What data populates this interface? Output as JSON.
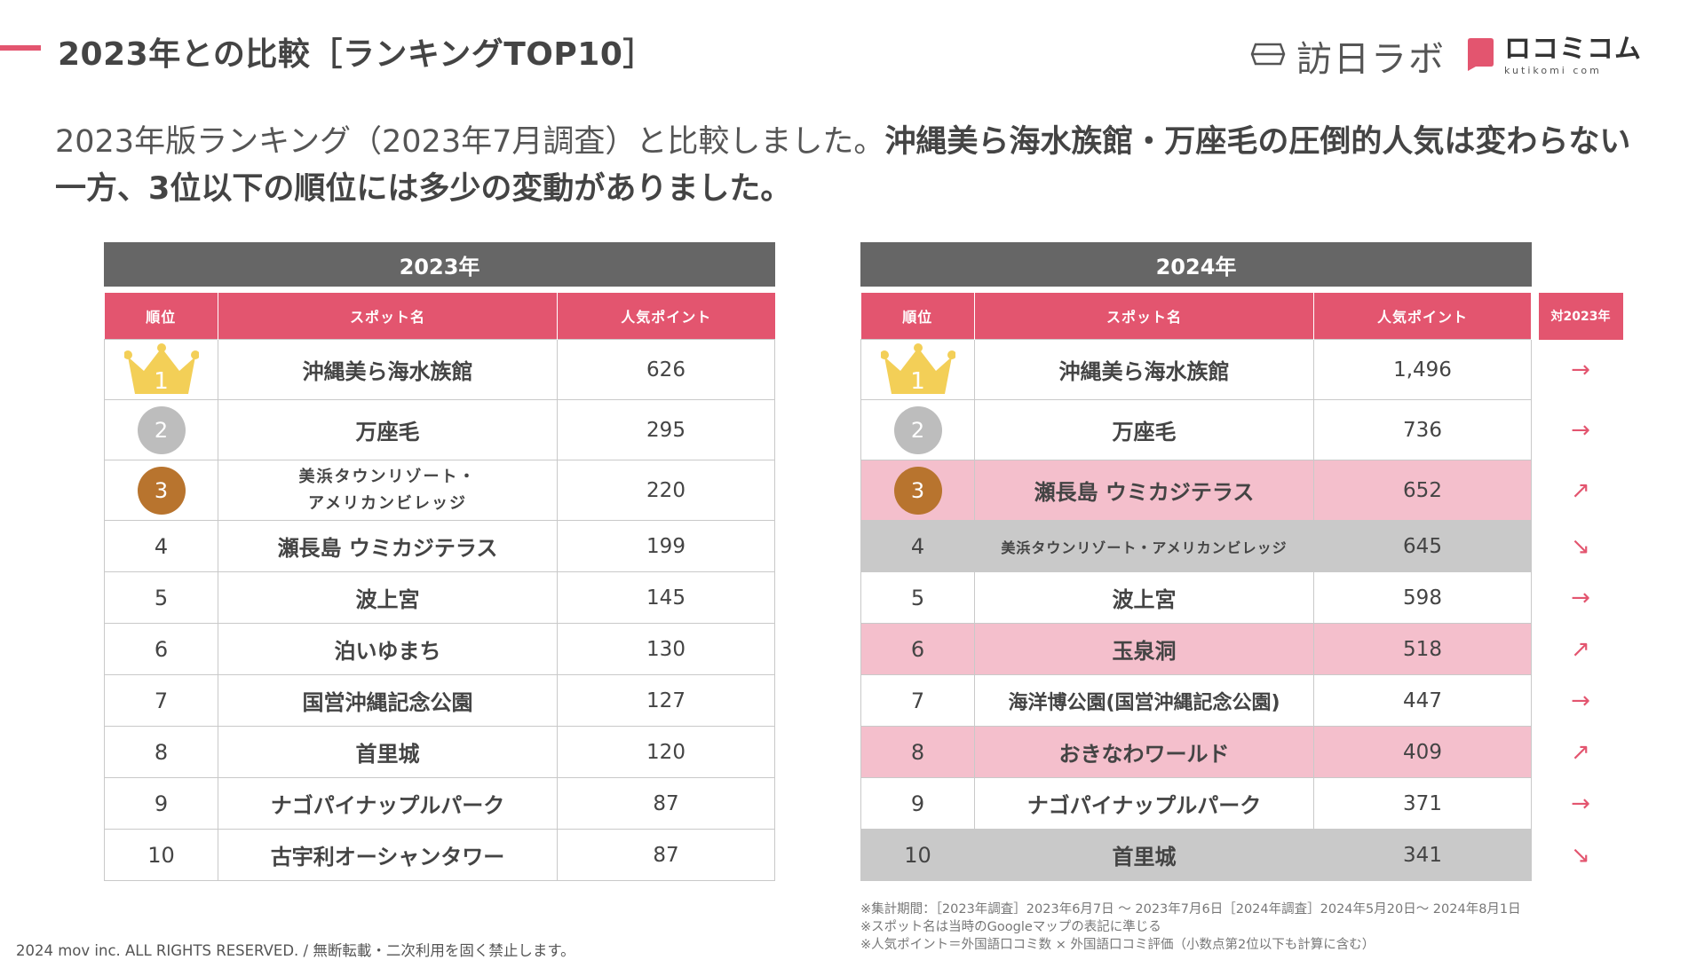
{
  "header": {
    "title": "2023年との比較［ランキングTOP10］",
    "logos": [
      {
        "icon": "lantern-icon",
        "text": "訪日ラボ"
      },
      {
        "icon": "speech-bubble-icon",
        "text": "ロコミコム",
        "subtext": "kutikomi com"
      }
    ]
  },
  "intro": {
    "normal": "2023年版ランキング（2023年7月調査）と比較しました。",
    "bold": "沖縄美ら海水族館・万座毛の圧倒的人気は変わらない一方、3位以下の順位には多少の変動がありました。"
  },
  "colors": {
    "accent": "#e3556f",
    "year_header": "#666666",
    "rank_up_row": "#f4bfcc",
    "rank_down_row": "#c9c9c9",
    "gold": "#f3cf57",
    "silver": "#bdbdbd",
    "bronze": "#b8742e"
  },
  "table_2023": {
    "year_label": "2023年",
    "columns": [
      "順位",
      "スポット名",
      "人気ポイント"
    ],
    "rows": [
      {
        "rank": "1",
        "name": "沖縄美ら海水族館",
        "points": "626"
      },
      {
        "rank": "2",
        "name": "万座毛",
        "points": "295"
      },
      {
        "rank": "3",
        "name_lines": [
          "美浜タウンリゾート・",
          "アメリカンビレッジ"
        ],
        "points": "220"
      },
      {
        "rank": "4",
        "name": "瀬長島 ウミカジテラス",
        "points": "199"
      },
      {
        "rank": "5",
        "name": "波上宮",
        "points": "145"
      },
      {
        "rank": "6",
        "name": "泊いゆまち",
        "points": "130"
      },
      {
        "rank": "7",
        "name": "国営沖縄記念公園",
        "points": "127"
      },
      {
        "rank": "8",
        "name": "首里城",
        "points": "120"
      },
      {
        "rank": "9",
        "name": "ナゴパイナップルパーク",
        "points": "87"
      },
      {
        "rank": "10",
        "name": "古宇利オーシャンタワー",
        "points": "87"
      }
    ]
  },
  "table_2024": {
    "year_label": "2024年",
    "columns": [
      "順位",
      "スポット名",
      "人気ポイント",
      "対2023年"
    ],
    "rows": [
      {
        "rank": "1",
        "name": "沖縄美ら海水族館",
        "points": "1,496",
        "change": "→",
        "trend": "same"
      },
      {
        "rank": "2",
        "name": "万座毛",
        "points": "736",
        "change": "→",
        "trend": "same"
      },
      {
        "rank": "3",
        "name": "瀬長島 ウミカジテラス",
        "points": "652",
        "change": "↗",
        "trend": "up"
      },
      {
        "rank": "4",
        "name": "美浜タウンリゾート・アメリカンビレッジ",
        "points": "645",
        "change": "↘",
        "trend": "down"
      },
      {
        "rank": "5",
        "name": "波上宮",
        "points": "598",
        "change": "→",
        "trend": "same"
      },
      {
        "rank": "6",
        "name": "玉泉洞",
        "points": "518",
        "change": "↗",
        "trend": "up"
      },
      {
        "rank": "7",
        "name": "海洋博公園(国営沖縄記念公園)",
        "points": "447",
        "change": "→",
        "trend": "same"
      },
      {
        "rank": "8",
        "name": "おきなわワールド",
        "points": "409",
        "change": "↗",
        "trend": "up"
      },
      {
        "rank": "9",
        "name": "ナゴパイナップルパーク",
        "points": "371",
        "change": "→",
        "trend": "same"
      },
      {
        "rank": "10",
        "name": "首里城",
        "points": "341",
        "change": "↘",
        "trend": "down"
      }
    ]
  },
  "notes": [
    "※集計期間：［2023年調査］2023年6月7日 〜 2023年7月6日［2024年調査］2024年5月20日〜 2024年8月1日",
    "※スポット名は当時のGoogleマップの表記に準じる",
    "※人気ポイント＝外国語口コミ数 × 外国語口コミ評価（小数点第2位以下も計算に含む）"
  ],
  "footer": {
    "copyright": "2024 mov inc. ALL RIGHTS RESERVED. / 無断転載・二次利用を固く禁止します。"
  }
}
